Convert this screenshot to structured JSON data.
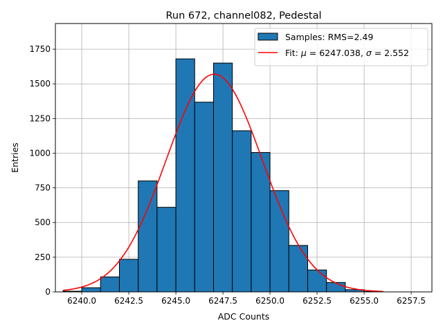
{
  "chart_data": {
    "type": "bar",
    "title": "Run 672, channel082, Pedestal",
    "xlabel": "ADC Counts",
    "ylabel": "Entries",
    "xlim": [
      6238.6,
      6258.6
    ],
    "ylim": [
      0,
      1935
    ],
    "xticks": [
      6240.0,
      6242.5,
      6245.0,
      6247.5,
      6250.0,
      6252.5,
      6255.0,
      6257.5
    ],
    "xtick_labels": [
      "6240.0",
      "6242.5",
      "6245.0",
      "6247.5",
      "6250.0",
      "6252.5",
      "6255.0",
      "6257.5"
    ],
    "yticks": [
      0,
      250,
      500,
      750,
      1000,
      1250,
      1500,
      1750
    ],
    "ytick_labels": [
      "0",
      "250",
      "500",
      "750",
      "1000",
      "1250",
      "1500",
      "1750"
    ],
    "grid": true,
    "legend_position": "top-right",
    "bar_color": "#1f77b4",
    "fit_color": "#ff0000",
    "histogram": {
      "name": "Samples: RMS=2.49",
      "bin_edges": [
        6239,
        6240,
        6241,
        6242,
        6243,
        6244,
        6245,
        6246,
        6247,
        6248,
        6249,
        6250,
        6251,
        6252,
        6253,
        6254,
        6255,
        6256
      ],
      "counts": [
        5,
        30,
        108,
        235,
        800,
        610,
        1680,
        1368,
        1650,
        1162,
        1005,
        730,
        335,
        158,
        68,
        16,
        3
      ]
    },
    "fit": {
      "name": "Fit: $\\mu$ = 6247.038, $\\sigma$ = 2.552",
      "label_parts": [
        "Fit: ",
        "μ",
        " = 6247.038, ",
        "σ",
        " = 2.552"
      ],
      "mu": 6247.038,
      "sigma": 2.552,
      "amplitude": 1570,
      "x_range": [
        6239,
        6256
      ]
    }
  }
}
